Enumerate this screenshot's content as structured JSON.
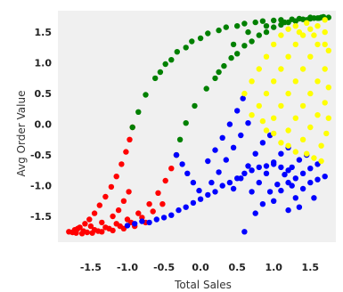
{
  "chart_data": {
    "type": "scatter",
    "title": "",
    "xlabel": "Total Sales",
    "ylabel": "Avg Order Value",
    "xlim": [
      -1.95,
      1.85
    ],
    "ylim": [
      -1.92,
      1.85
    ],
    "xticks": [
      "-1.5",
      "-1.0",
      "-0.5",
      "0.0",
      "0.5",
      "1.0",
      "1.5"
    ],
    "xtick_values": [
      -1.5,
      -1.0,
      -0.5,
      0.0,
      0.5,
      1.0,
      1.5
    ],
    "yticks": [
      "1.5",
      "1.0",
      "0.5",
      "0.0",
      "-0.5",
      "-1.0",
      "-1.5"
    ],
    "ytick_values": [
      1.5,
      1.0,
      0.5,
      0.0,
      -0.5,
      -1.0,
      -1.5
    ],
    "grid": false,
    "legend": "none",
    "plot_background": "#f0f0f0",
    "clusters": [
      {
        "color": "#ff0000",
        "points": [
          [
            -1.8,
            -1.75
          ],
          [
            -1.72,
            -1.72
          ],
          [
            -1.65,
            -1.68
          ],
          [
            -1.58,
            -1.62
          ],
          [
            -1.52,
            -1.55
          ],
          [
            -1.45,
            -1.45
          ],
          [
            -1.38,
            -1.32
          ],
          [
            -1.3,
            -1.18
          ],
          [
            -1.22,
            -1.02
          ],
          [
            -1.15,
            -0.85
          ],
          [
            -1.08,
            -0.65
          ],
          [
            -1.02,
            -0.45
          ],
          [
            -0.97,
            -0.25
          ],
          [
            -0.93,
            -0.05
          ],
          [
            -1.75,
            -1.76
          ],
          [
            -1.6,
            -1.74
          ],
          [
            -1.45,
            -1.72
          ],
          [
            -1.3,
            -1.68
          ],
          [
            -1.15,
            -1.62
          ],
          [
            -1.0,
            -1.55
          ],
          [
            -0.85,
            -1.45
          ],
          [
            -0.7,
            -1.3
          ],
          [
            -0.58,
            -1.12
          ],
          [
            -0.48,
            -0.92
          ],
          [
            -0.4,
            -0.72
          ],
          [
            -0.33,
            -0.5
          ],
          [
            -1.7,
            -1.77
          ],
          [
            -1.55,
            -1.76
          ],
          [
            -1.4,
            -1.74
          ],
          [
            -1.25,
            -1.7
          ],
          [
            -1.1,
            -1.66
          ],
          [
            -0.95,
            -1.6
          ],
          [
            -0.8,
            -1.52
          ],
          [
            -0.65,
            -1.42
          ],
          [
            -0.52,
            -1.3
          ],
          [
            -1.62,
            -1.78
          ],
          [
            -1.48,
            -1.77
          ],
          [
            -1.35,
            -1.75
          ],
          [
            -1.2,
            -1.73
          ],
          [
            -1.05,
            -1.7
          ],
          [
            -0.9,
            -1.66
          ],
          [
            -0.75,
            -1.6
          ],
          [
            -1.68,
            -1.7
          ],
          [
            -1.5,
            -1.66
          ],
          [
            -1.35,
            -1.6
          ],
          [
            -1.2,
            -1.5
          ],
          [
            -1.12,
            -1.4
          ],
          [
            -1.05,
            -1.25
          ],
          [
            -0.98,
            -1.1
          ]
        ]
      },
      {
        "color": "#008000",
        "points": [
          [
            -0.93,
            -0.05
          ],
          [
            -0.85,
            0.2
          ],
          [
            -0.75,
            0.48
          ],
          [
            -0.62,
            0.75
          ],
          [
            -0.48,
            0.98
          ],
          [
            -0.32,
            1.18
          ],
          [
            -0.12,
            1.35
          ],
          [
            0.1,
            1.48
          ],
          [
            0.35,
            1.58
          ],
          [
            0.6,
            1.64
          ],
          [
            0.85,
            1.68
          ],
          [
            1.1,
            1.7
          ],
          [
            1.35,
            1.72
          ],
          [
            1.6,
            1.73
          ],
          [
            1.75,
            1.74
          ],
          [
            -0.33,
            -0.5
          ],
          [
            -0.28,
            -0.25
          ],
          [
            -0.2,
            0.02
          ],
          [
            -0.08,
            0.3
          ],
          [
            0.08,
            0.58
          ],
          [
            0.25,
            0.85
          ],
          [
            0.42,
            1.08
          ],
          [
            0.6,
            1.28
          ],
          [
            0.8,
            1.45
          ],
          [
            1.0,
            1.58
          ],
          [
            1.2,
            1.66
          ],
          [
            1.4,
            1.71
          ],
          [
            1.55,
            1.73
          ],
          [
            -0.55,
            0.85
          ],
          [
            -0.4,
            1.05
          ],
          [
            -0.2,
            1.25
          ],
          [
            0.0,
            1.4
          ],
          [
            0.25,
            1.53
          ],
          [
            0.5,
            1.6
          ],
          [
            0.75,
            1.66
          ],
          [
            1.0,
            1.69
          ],
          [
            1.25,
            1.71
          ],
          [
            1.5,
            1.74
          ],
          [
            1.68,
            1.75
          ],
          [
            0.2,
            0.75
          ],
          [
            0.32,
            0.95
          ],
          [
            0.5,
            1.15
          ],
          [
            0.7,
            1.35
          ],
          [
            0.9,
            1.5
          ],
          [
            1.1,
            1.62
          ],
          [
            1.3,
            1.68
          ],
          [
            1.5,
            1.72
          ],
          [
            1.65,
            1.74
          ],
          [
            0.45,
            1.3
          ],
          [
            0.65,
            1.5
          ],
          [
            0.9,
            1.6
          ],
          [
            1.15,
            1.66
          ],
          [
            1.45,
            1.7
          ],
          [
            1.62,
            1.73
          ]
        ]
      },
      {
        "color": "#0000ff",
        "points": [
          [
            -1.0,
            -1.65
          ],
          [
            -0.9,
            -1.62
          ],
          [
            -0.8,
            -1.58
          ],
          [
            -0.7,
            -1.6
          ],
          [
            -0.6,
            -1.55
          ],
          [
            -0.5,
            -1.52
          ],
          [
            -0.4,
            -1.48
          ],
          [
            -0.3,
            -1.4
          ],
          [
            -0.2,
            -1.35
          ],
          [
            -0.1,
            -1.28
          ],
          [
            0.0,
            -1.22
          ],
          [
            0.1,
            -1.15
          ],
          [
            0.2,
            -1.1
          ],
          [
            0.3,
            -1.0
          ],
          [
            0.4,
            -0.95
          ],
          [
            0.5,
            -0.88
          ],
          [
            0.6,
            -0.8
          ],
          [
            0.7,
            -0.75
          ],
          [
            0.8,
            -0.7
          ],
          [
            0.9,
            -0.68
          ],
          [
            1.0,
            -0.65
          ],
          [
            1.1,
            -0.7
          ],
          [
            1.2,
            -0.75
          ],
          [
            -0.33,
            -0.5
          ],
          [
            -0.25,
            -0.65
          ],
          [
            -0.18,
            -0.8
          ],
          [
            -0.1,
            -0.95
          ],
          [
            -0.02,
            -1.08
          ],
          [
            0.1,
            -0.6
          ],
          [
            0.2,
            -0.42
          ],
          [
            0.3,
            -0.22
          ],
          [
            0.4,
            0.0
          ],
          [
            0.5,
            0.22
          ],
          [
            0.58,
            0.42
          ],
          [
            0.15,
            -0.95
          ],
          [
            0.25,
            -0.78
          ],
          [
            0.35,
            -0.58
          ],
          [
            0.45,
            -0.38
          ],
          [
            0.55,
            -0.18
          ],
          [
            0.65,
            0.02
          ],
          [
            0.45,
            -1.05
          ],
          [
            0.55,
            -0.88
          ],
          [
            0.65,
            -0.68
          ],
          [
            0.75,
            -0.48
          ],
          [
            0.85,
            -0.3
          ],
          [
            0.95,
            -0.18
          ],
          [
            0.7,
            -1.1
          ],
          [
            0.8,
            -0.95
          ],
          [
            0.9,
            -0.8
          ],
          [
            1.0,
            -0.62
          ],
          [
            1.1,
            -0.48
          ],
          [
            1.2,
            -0.38
          ],
          [
            0.85,
            -1.3
          ],
          [
            0.95,
            -1.1
          ],
          [
            1.05,
            -0.98
          ],
          [
            1.15,
            -0.82
          ],
          [
            1.25,
            -0.7
          ],
          [
            1.35,
            -0.58
          ],
          [
            1.45,
            -0.5
          ],
          [
            1.0,
            -1.25
          ],
          [
            1.1,
            -1.08
          ],
          [
            1.2,
            -0.95
          ],
          [
            1.3,
            -0.88
          ],
          [
            1.4,
            -0.8
          ],
          [
            1.5,
            -0.72
          ],
          [
            1.6,
            -0.65
          ],
          [
            1.2,
            -1.4
          ],
          [
            1.3,
            -1.2
          ],
          [
            1.4,
            -1.05
          ],
          [
            1.5,
            -0.95
          ],
          [
            1.6,
            -0.9
          ],
          [
            1.7,
            -0.85
          ],
          [
            1.25,
            -1.0
          ],
          [
            1.55,
            -1.2
          ],
          [
            0.6,
            -1.75
          ],
          [
            1.35,
            -1.35
          ],
          [
            0.75,
            -1.45
          ]
        ]
      },
      {
        "color": "#ffff00",
        "points": [
          [
            0.6,
            0.5
          ],
          [
            0.7,
            0.7
          ],
          [
            0.8,
            0.9
          ],
          [
            0.9,
            1.1
          ],
          [
            1.0,
            1.3
          ],
          [
            1.1,
            1.45
          ],
          [
            1.2,
            1.55
          ],
          [
            0.8,
            0.3
          ],
          [
            0.9,
            0.5
          ],
          [
            1.0,
            0.7
          ],
          [
            1.1,
            0.9
          ],
          [
            1.2,
            1.1
          ],
          [
            1.3,
            1.3
          ],
          [
            1.4,
            1.45
          ],
          [
            1.5,
            1.55
          ],
          [
            0.9,
            -0.1
          ],
          [
            1.0,
            0.1
          ],
          [
            1.1,
            0.3
          ],
          [
            1.2,
            0.5
          ],
          [
            1.3,
            0.7
          ],
          [
            1.4,
            0.9
          ],
          [
            1.5,
            1.1
          ],
          [
            1.6,
            1.3
          ],
          [
            1.7,
            1.5
          ],
          [
            1.1,
            -0.3
          ],
          [
            1.2,
            -0.1
          ],
          [
            1.3,
            0.1
          ],
          [
            1.4,
            0.3
          ],
          [
            1.5,
            0.5
          ],
          [
            1.6,
            0.7
          ],
          [
            1.7,
            0.9
          ],
          [
            1.75,
            1.2
          ],
          [
            1.3,
            -0.45
          ],
          [
            1.4,
            -0.25
          ],
          [
            1.5,
            -0.05
          ],
          [
            1.6,
            0.15
          ],
          [
            1.7,
            0.35
          ],
          [
            1.75,
            0.6
          ],
          [
            1.55,
            -0.55
          ],
          [
            1.65,
            -0.35
          ],
          [
            1.72,
            -0.15
          ],
          [
            1.75,
            0.1
          ],
          [
            0.7,
            0.15
          ],
          [
            0.85,
            0.05
          ],
          [
            1.0,
            -0.15
          ],
          [
            1.2,
            -0.35
          ],
          [
            1.45,
            -0.48
          ],
          [
            1.65,
            -0.6
          ],
          [
            1.3,
            1.6
          ],
          [
            1.45,
            1.65
          ],
          [
            1.6,
            1.6
          ],
          [
            1.7,
            1.7
          ],
          [
            1.35,
            1.5
          ],
          [
            1.55,
            1.45
          ],
          [
            1.7,
            1.3
          ]
        ]
      }
    ]
  }
}
